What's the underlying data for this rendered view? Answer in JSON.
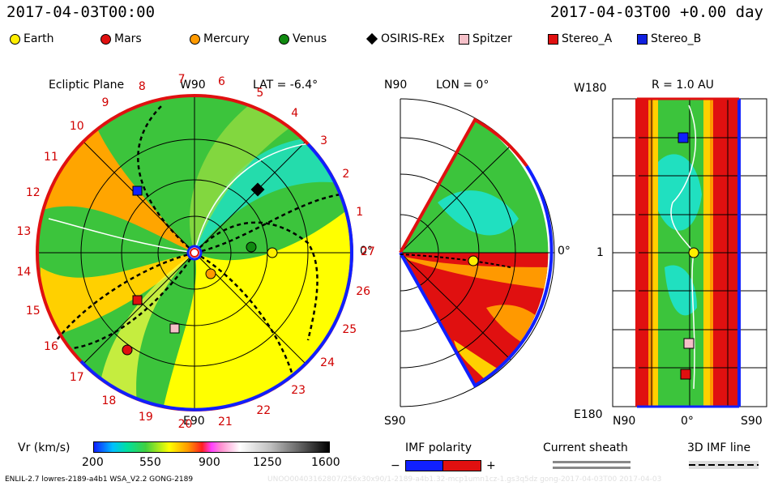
{
  "header": {
    "left_time": "2017-04-03T00:00",
    "right_time": "2017-04-03T00  +0.00  day"
  },
  "legend": [
    {
      "label": "Earth",
      "color": "#ffee00",
      "shape": "circle"
    },
    {
      "label": "Mars",
      "color": "#e01010",
      "shape": "circle"
    },
    {
      "label": "Mercury",
      "color": "#ff9a00",
      "shape": "circle"
    },
    {
      "label": "Venus",
      "color": "#108a10",
      "shape": "circle"
    },
    {
      "label": "OSIRIS-REx",
      "color": "#000000",
      "shape": "diamond"
    },
    {
      "label": "Spitzer",
      "color": "#f5c0c8",
      "shape": "square"
    },
    {
      "label": "Stereo_A",
      "color": "#e01010",
      "shape": "square"
    },
    {
      "label": "Stereo_B",
      "color": "#1020e0",
      "shape": "square"
    }
  ],
  "ecliptic": {
    "title": "Ecliptic Plane",
    "w90": "W90",
    "lat": "LAT = -6.4°",
    "e90": "E90",
    "zero": "0°",
    "rotation_numbers": [
      "1",
      "2",
      "3",
      "4",
      "5",
      "6",
      "7",
      "8",
      "9",
      "10",
      "11",
      "12",
      "13",
      "14",
      "15",
      "16",
      "17",
      "18",
      "19",
      "20",
      "21",
      "22",
      "23",
      "24",
      "25",
      "26",
      "27"
    ]
  },
  "meridional": {
    "n90": "N90",
    "lon": "LON = 0°",
    "s90": "S90",
    "zero": "0°"
  },
  "sphere": {
    "w180": "W180",
    "r": "R = 1.0 AU",
    "one": "1",
    "e180": "E180",
    "n90": "N90",
    "zero": "0°",
    "s90": "S90"
  },
  "colorbar": {
    "label": "Vr (km/s)",
    "ticks": [
      "200",
      "550",
      "900",
      "1250",
      "1600"
    ]
  },
  "imf": {
    "label": "IMF polarity",
    "minus": "−",
    "plus": "+"
  },
  "sheath": {
    "label": "Current sheath"
  },
  "imf3d": {
    "label": "3D IMF line"
  },
  "footer": {
    "left": "ENLIL-2.7 lowres-2189-a4b1 WSA_V2.2 GONG-2189",
    "right": "UNOO00403162807/256x30x90/1-2189-a4b1.32-mcp1umn1cz-1.gs3q5dz gong-2017-04-03T00    2017-04-03"
  },
  "colors": {
    "green": "#3cc43c",
    "yellow": "#ffff00",
    "orange": "#ff9900",
    "red": "#e01010",
    "cyan": "#10e0c0",
    "blue": "#1020ff"
  }
}
